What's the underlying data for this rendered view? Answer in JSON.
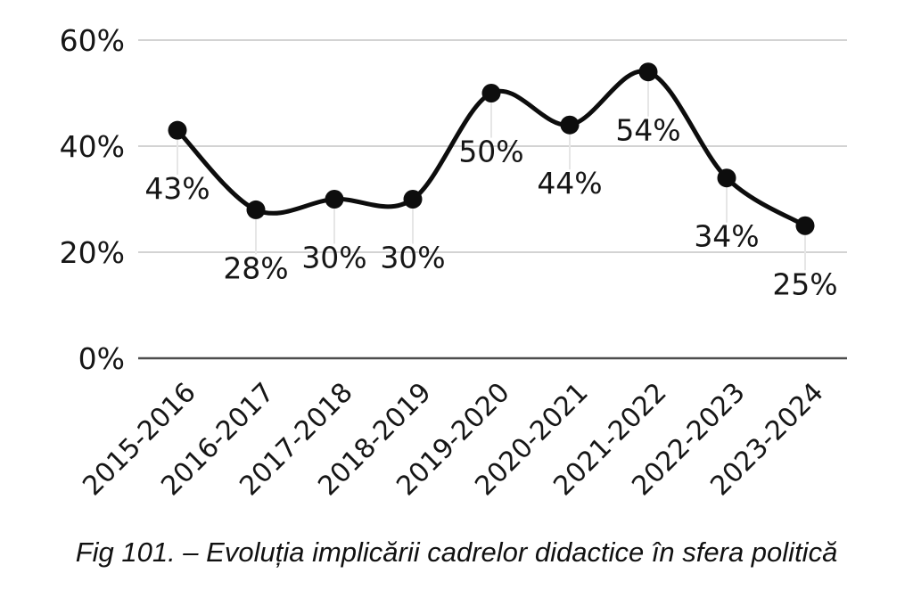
{
  "figure": {
    "caption": "Fig 101. – Evoluția implicării cadrelor didactice în sfera politică"
  },
  "chart_data": {
    "type": "line",
    "title": "",
    "xlabel": "",
    "ylabel": "",
    "categories": [
      "2015-2016",
      "2016-2017",
      "2017-2018",
      "2018-2019",
      "2019-2020",
      "2020-2021",
      "2021-2022",
      "2022-2023",
      "2023-2024"
    ],
    "values": [
      43,
      28,
      30,
      30,
      50,
      44,
      54,
      34,
      25
    ],
    "data_labels": [
      "43%",
      "28%",
      "30%",
      "30%",
      "50%",
      "44%",
      "54%",
      "34%",
      "25%"
    ],
    "ylim": [
      0,
      60
    ],
    "yticks": [
      {
        "value": 0,
        "label": "0%"
      },
      {
        "value": 20,
        "label": "20%"
      },
      {
        "value": 40,
        "label": "40%"
      },
      {
        "value": 60,
        "label": "60%"
      }
    ],
    "grid": true,
    "legend_position": "none",
    "smooth": true,
    "colors": {
      "line": "#0d0d0d",
      "point": "#0d0d0d",
      "grid": "#d3d3d3",
      "axis": "#4d4d4d",
      "leader": "#e6e6e6",
      "label": "#161616",
      "background": "#ffffff"
    }
  }
}
